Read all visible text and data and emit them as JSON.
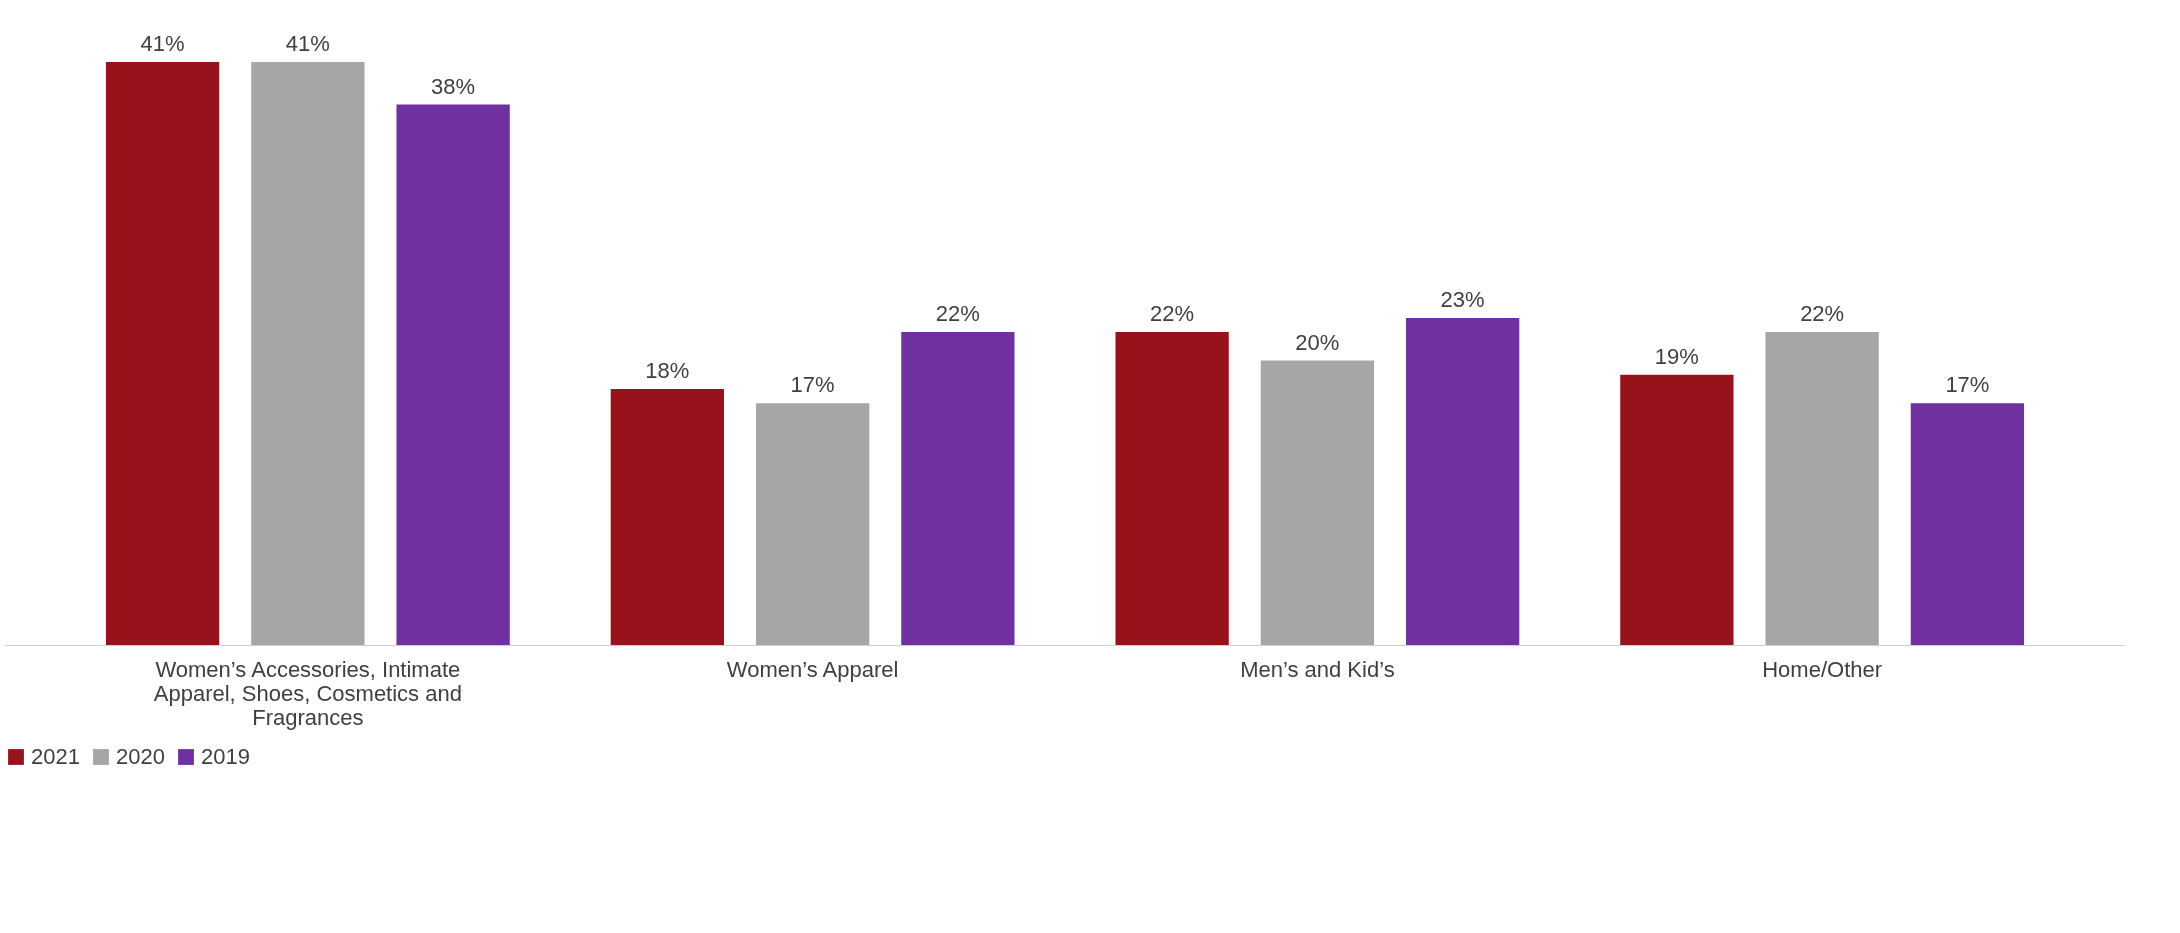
{
  "chart_data": {
    "type": "bar",
    "categories": [
      "Women’s Accessories, Intimate Apparel, Shoes, Cosmetics and Fragrances",
      "Women’s Apparel",
      "Men’s and Kid’s",
      "Home/Other"
    ],
    "series": [
      {
        "name": "2021",
        "color": "#96131b",
        "values": [
          41,
          18,
          22,
          19
        ],
        "value_labels": [
          "41%",
          "18%",
          "22%",
          "19%"
        ]
      },
      {
        "name": "2020",
        "color": "#a6a6a6",
        "values": [
          41,
          17,
          20,
          22
        ],
        "value_labels": [
          "41%",
          "17%",
          "20%",
          "22%"
        ]
      },
      {
        "name": "2019",
        "color": "#7030a0",
        "values": [
          38,
          22,
          23,
          17
        ],
        "value_labels": [
          "38%",
          "22%",
          "23%",
          "17%"
        ]
      }
    ],
    "legend": "bottom",
    "grid": false
  }
}
